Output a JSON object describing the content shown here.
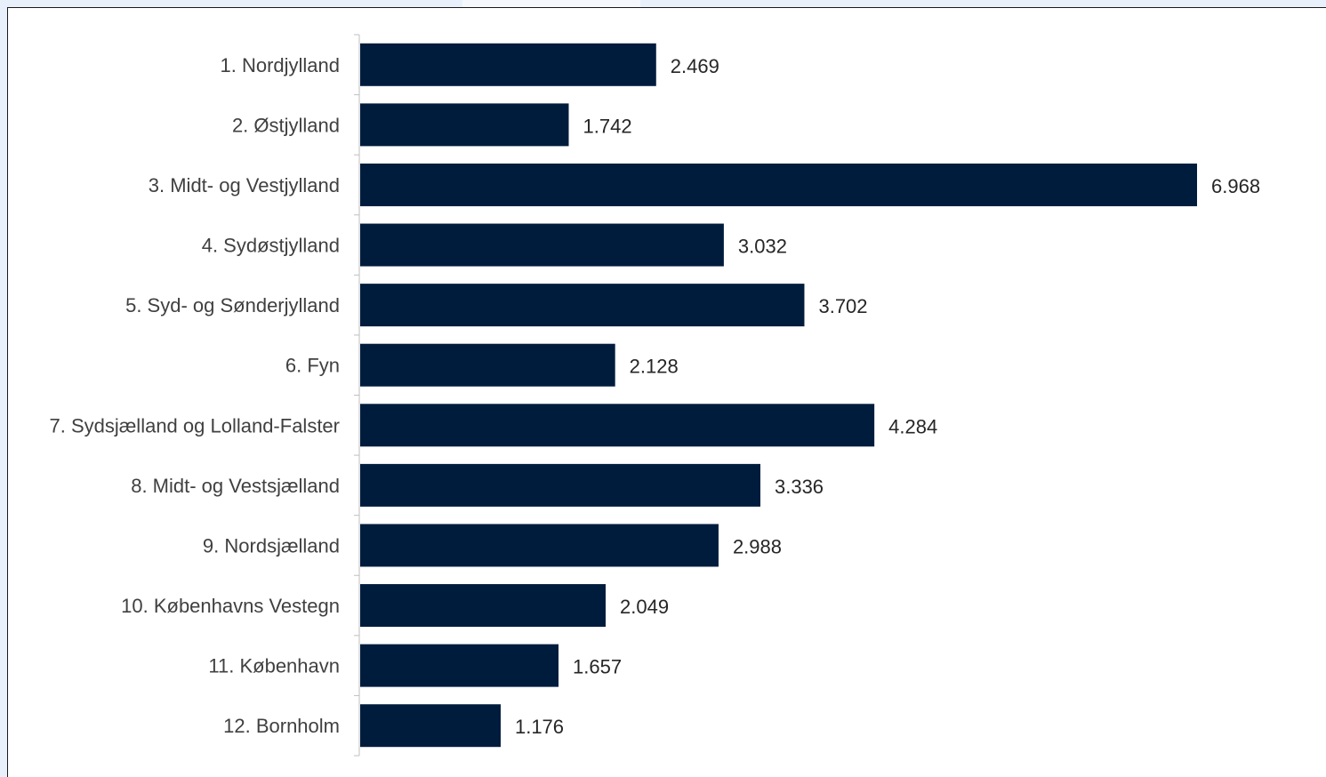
{
  "chart_data": {
    "type": "bar",
    "orientation": "horizontal",
    "categories": [
      "1. Nordjylland",
      "2. Østjylland",
      "3. Midt- og Vestjylland",
      "4. Sydøstjylland",
      "5. Syd- og Sønderjylland",
      "6. Fyn",
      "7. Sydsjælland og Lolland-Falster",
      "8. Midt- og Vestsjælland",
      "9. Nordsjælland",
      "10. Københavns Vestegn",
      "11. København",
      "12. Bornholm"
    ],
    "values": [
      2469,
      1742,
      6968,
      3032,
      3702,
      2128,
      4284,
      3336,
      2988,
      2049,
      1657,
      1176
    ],
    "value_labels": [
      "2.469",
      "1.742",
      "6.968",
      "3.032",
      "3.702",
      "2.128",
      "4.284",
      "3.336",
      "2.988",
      "2.049",
      "1.657",
      "1.176"
    ],
    "xlim": [
      0,
      7000
    ],
    "grid": false,
    "legend": "none",
    "bar_color": "#001c3d",
    "title": "",
    "xlabel": "",
    "ylabel": ""
  }
}
